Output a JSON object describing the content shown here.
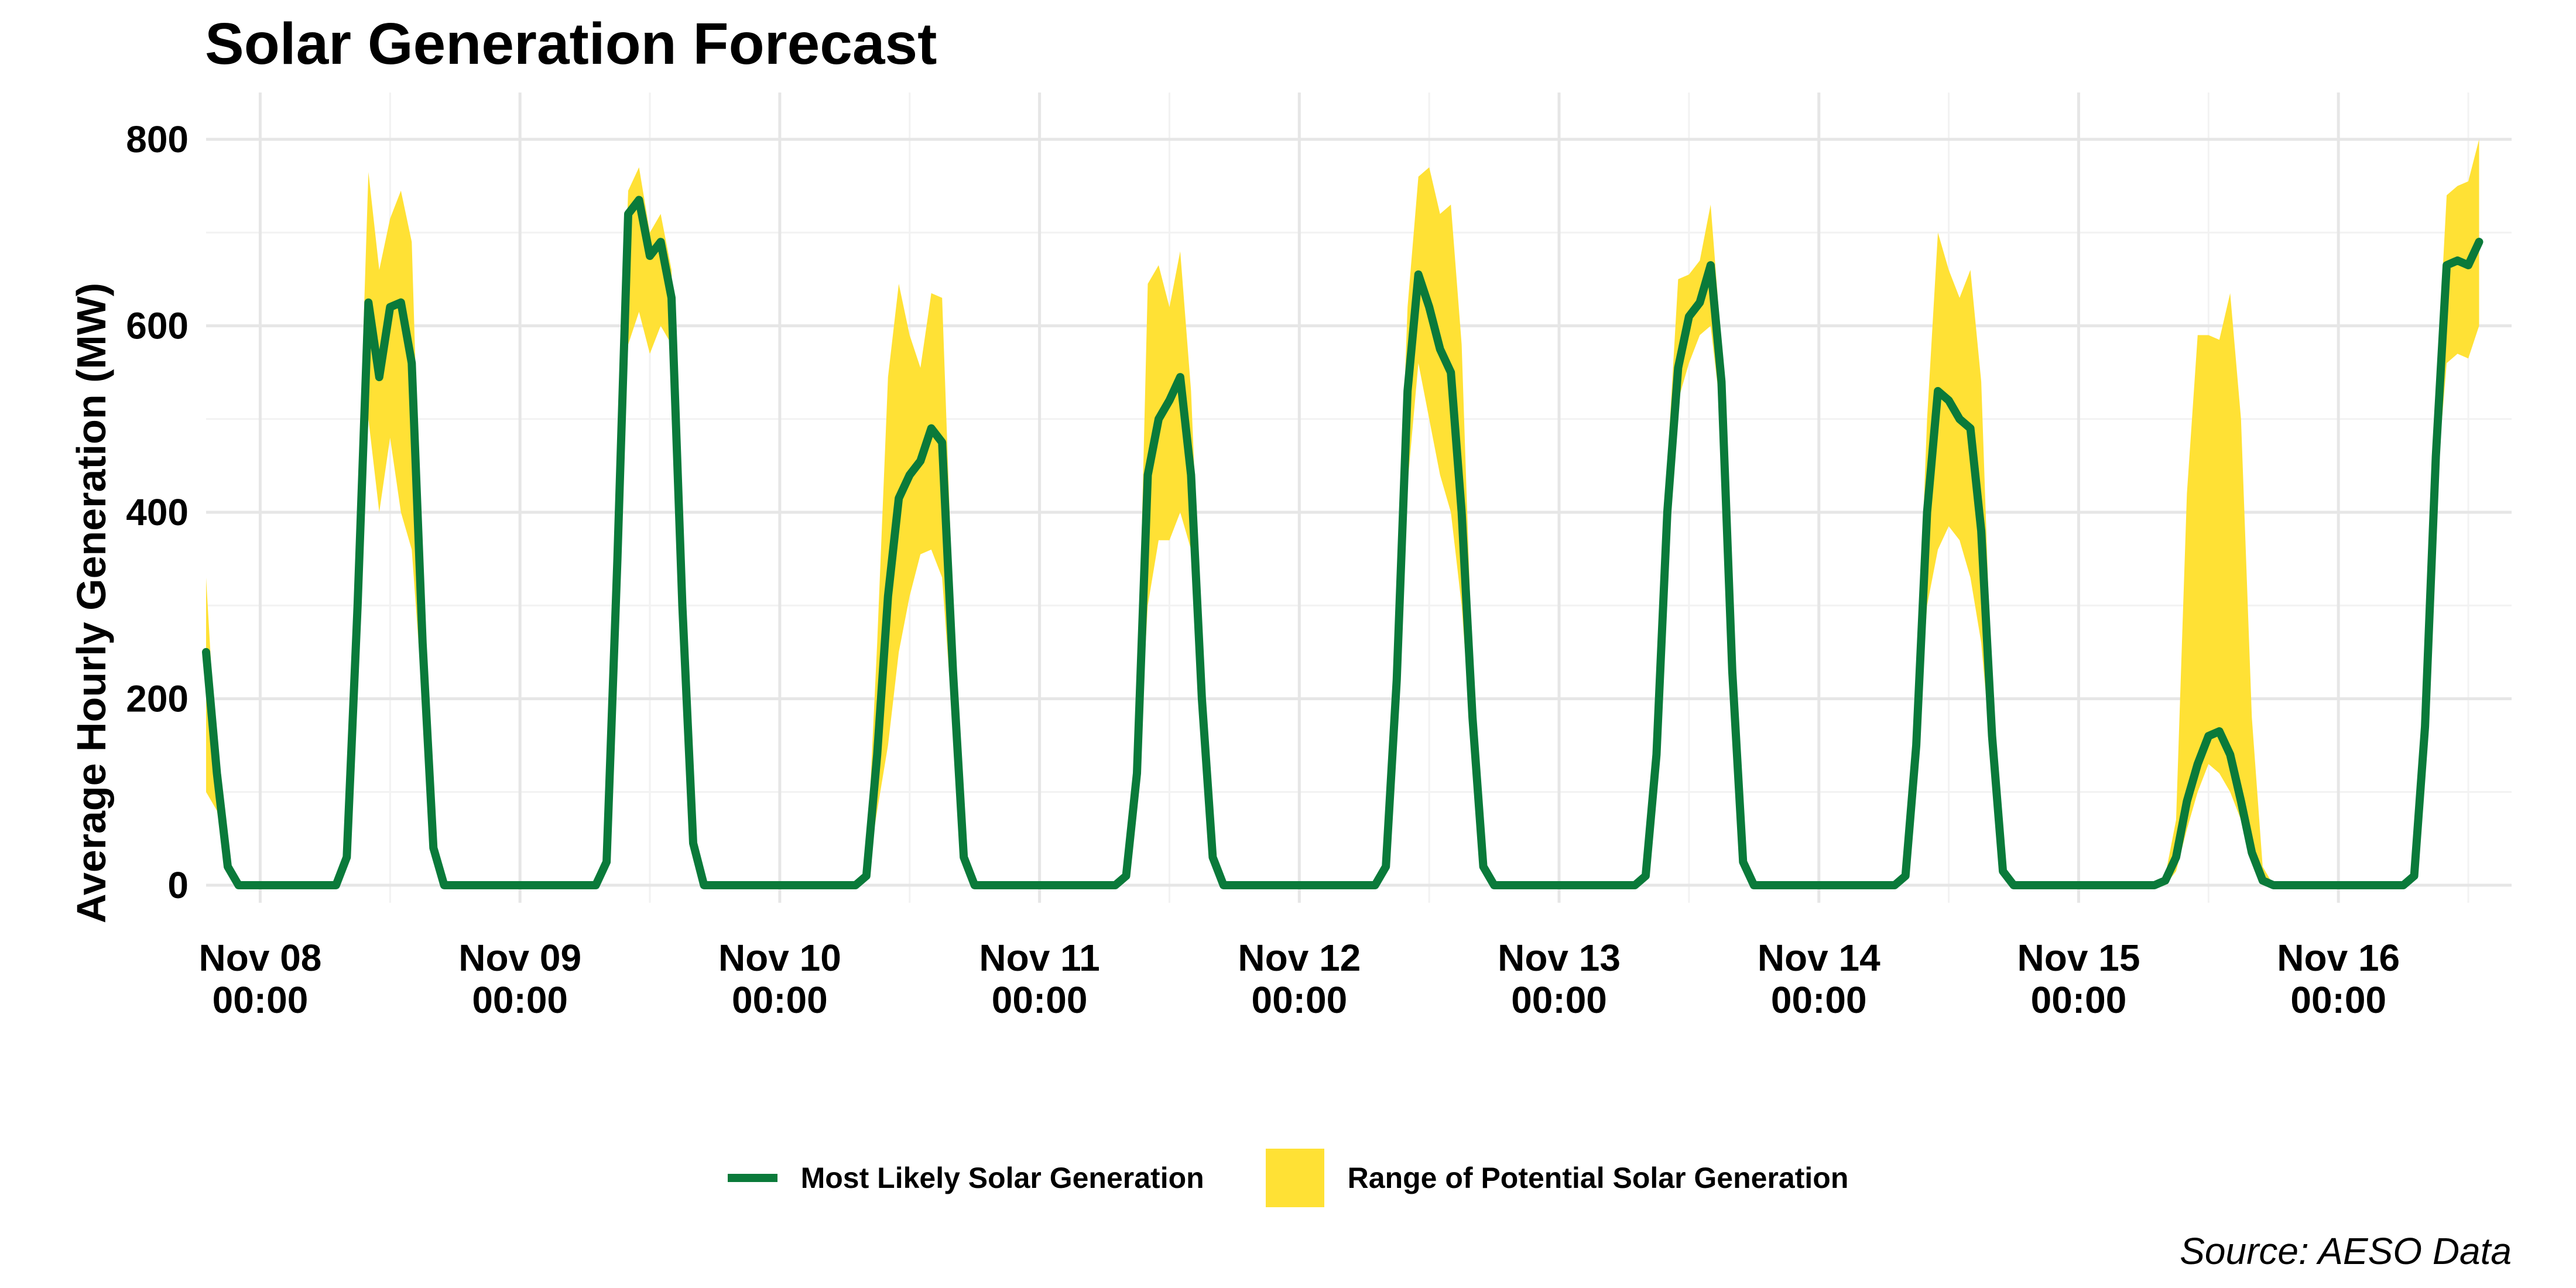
{
  "chart_data": {
    "type": "line",
    "title": "Solar Generation Forecast",
    "ylabel": "Average Hourly Generation (MW)",
    "xlabel": "",
    "ylim": [
      0,
      800
    ],
    "y_ticks": [
      0,
      200,
      400,
      600,
      800
    ],
    "x_domain": [
      "2024-11-07 19:00",
      "2024-11-16 16:00"
    ],
    "x_ticks": [
      {
        "x": "2024-11-08 00:00",
        "line1": "Nov 08",
        "line2": "00:00"
      },
      {
        "x": "2024-11-09 00:00",
        "line1": "Nov 09",
        "line2": "00:00"
      },
      {
        "x": "2024-11-10 00:00",
        "line1": "Nov 10",
        "line2": "00:00"
      },
      {
        "x": "2024-11-11 00:00",
        "line1": "Nov 11",
        "line2": "00:00"
      },
      {
        "x": "2024-11-12 00:00",
        "line1": "Nov 12",
        "line2": "00:00"
      },
      {
        "x": "2024-11-13 00:00",
        "line1": "Nov 13",
        "line2": "00:00"
      },
      {
        "x": "2024-11-14 00:00",
        "line1": "Nov 14",
        "line2": "00:00"
      },
      {
        "x": "2024-11-15 00:00",
        "line1": "Nov 15",
        "line2": "00:00"
      },
      {
        "x": "2024-11-16 00:00",
        "line1": "Nov 16",
        "line2": "00:00"
      }
    ],
    "grid": true,
    "legend_position": "bottom",
    "colors": {
      "line": "#0a7a3a",
      "band": "#ffe135",
      "grid": "#e6e6e6"
    },
    "series": [
      {
        "name": "Most Likely Solar Generation",
        "kind": "line",
        "points": [
          [
            "2024-11-07 19:00",
            250
          ],
          [
            "2024-11-07 20:00",
            120
          ],
          [
            "2024-11-07 21:00",
            20
          ],
          [
            "2024-11-07 22:00",
            0
          ],
          [
            "2024-11-08 07:00",
            0
          ],
          [
            "2024-11-08 08:00",
            30
          ],
          [
            "2024-11-08 09:00",
            300
          ],
          [
            "2024-11-08 10:00",
            625
          ],
          [
            "2024-11-08 11:00",
            545
          ],
          [
            "2024-11-08 12:00",
            620
          ],
          [
            "2024-11-08 13:00",
            625
          ],
          [
            "2024-11-08 14:00",
            560
          ],
          [
            "2024-11-08 15:00",
            260
          ],
          [
            "2024-11-08 16:00",
            40
          ],
          [
            "2024-11-08 17:00",
            0
          ],
          [
            "2024-11-09 07:00",
            0
          ],
          [
            "2024-11-09 08:00",
            25
          ],
          [
            "2024-11-09 09:00",
            350
          ],
          [
            "2024-11-09 10:00",
            720
          ],
          [
            "2024-11-09 11:00",
            735
          ],
          [
            "2024-11-09 12:00",
            675
          ],
          [
            "2024-11-09 13:00",
            690
          ],
          [
            "2024-11-09 14:00",
            630
          ],
          [
            "2024-11-09 15:00",
            300
          ],
          [
            "2024-11-09 16:00",
            45
          ],
          [
            "2024-11-09 17:00",
            0
          ],
          [
            "2024-11-10 07:00",
            0
          ],
          [
            "2024-11-10 08:00",
            10
          ],
          [
            "2024-11-10 09:00",
            140
          ],
          [
            "2024-11-10 10:00",
            310
          ],
          [
            "2024-11-10 11:00",
            415
          ],
          [
            "2024-11-10 12:00",
            440
          ],
          [
            "2024-11-10 13:00",
            455
          ],
          [
            "2024-11-10 14:00",
            490
          ],
          [
            "2024-11-10 15:00",
            475
          ],
          [
            "2024-11-10 16:00",
            230
          ],
          [
            "2024-11-10 17:00",
            30
          ],
          [
            "2024-11-10 18:00",
            0
          ],
          [
            "2024-11-11 07:00",
            0
          ],
          [
            "2024-11-11 08:00",
            10
          ],
          [
            "2024-11-11 09:00",
            120
          ],
          [
            "2024-11-11 10:00",
            440
          ],
          [
            "2024-11-11 11:00",
            500
          ],
          [
            "2024-11-11 12:00",
            520
          ],
          [
            "2024-11-11 13:00",
            545
          ],
          [
            "2024-11-11 14:00",
            440
          ],
          [
            "2024-11-11 15:00",
            200
          ],
          [
            "2024-11-11 16:00",
            30
          ],
          [
            "2024-11-11 17:00",
            0
          ],
          [
            "2024-11-12 07:00",
            0
          ],
          [
            "2024-11-12 08:00",
            20
          ],
          [
            "2024-11-12 09:00",
            220
          ],
          [
            "2024-11-12 10:00",
            530
          ],
          [
            "2024-11-12 11:00",
            655
          ],
          [
            "2024-11-12 12:00",
            620
          ],
          [
            "2024-11-12 13:00",
            575
          ],
          [
            "2024-11-12 14:00",
            550
          ],
          [
            "2024-11-12 15:00",
            400
          ],
          [
            "2024-11-12 16:00",
            180
          ],
          [
            "2024-11-12 17:00",
            20
          ],
          [
            "2024-11-12 18:00",
            0
          ],
          [
            "2024-11-13 07:00",
            0
          ],
          [
            "2024-11-13 08:00",
            10
          ],
          [
            "2024-11-13 09:00",
            140
          ],
          [
            "2024-11-13 10:00",
            400
          ],
          [
            "2024-11-13 11:00",
            555
          ],
          [
            "2024-11-13 12:00",
            610
          ],
          [
            "2024-11-13 13:00",
            625
          ],
          [
            "2024-11-13 14:00",
            665
          ],
          [
            "2024-11-13 15:00",
            540
          ],
          [
            "2024-11-13 16:00",
            230
          ],
          [
            "2024-11-13 17:00",
            25
          ],
          [
            "2024-11-13 18:00",
            0
          ],
          [
            "2024-11-14 07:00",
            0
          ],
          [
            "2024-11-14 08:00",
            10
          ],
          [
            "2024-11-14 09:00",
            150
          ],
          [
            "2024-11-14 10:00",
            400
          ],
          [
            "2024-11-14 11:00",
            530
          ],
          [
            "2024-11-14 12:00",
            520
          ],
          [
            "2024-11-14 13:00",
            500
          ],
          [
            "2024-11-14 14:00",
            490
          ],
          [
            "2024-11-14 15:00",
            380
          ],
          [
            "2024-11-14 16:00",
            160
          ],
          [
            "2024-11-14 17:00",
            15
          ],
          [
            "2024-11-14 18:00",
            0
          ],
          [
            "2024-11-15 07:00",
            0
          ],
          [
            "2024-11-15 08:00",
            5
          ],
          [
            "2024-11-15 09:00",
            30
          ],
          [
            "2024-11-15 10:00",
            90
          ],
          [
            "2024-11-15 11:00",
            130
          ],
          [
            "2024-11-15 12:00",
            160
          ],
          [
            "2024-11-15 13:00",
            165
          ],
          [
            "2024-11-15 14:00",
            140
          ],
          [
            "2024-11-15 15:00",
            90
          ],
          [
            "2024-11-15 16:00",
            35
          ],
          [
            "2024-11-15 17:00",
            5
          ],
          [
            "2024-11-15 18:00",
            0
          ],
          [
            "2024-11-16 06:00",
            0
          ],
          [
            "2024-11-16 07:00",
            10
          ],
          [
            "2024-11-16 08:00",
            170
          ],
          [
            "2024-11-16 09:00",
            460
          ],
          [
            "2024-11-16 10:00",
            665
          ],
          [
            "2024-11-16 11:00",
            670
          ],
          [
            "2024-11-16 12:00",
            665
          ],
          [
            "2024-11-16 13:00",
            690
          ]
        ]
      },
      {
        "name": "Range of Potential Solar Generation",
        "kind": "band",
        "points": [
          [
            "2024-11-07 19:00",
            100,
            330
          ],
          [
            "2024-11-07 20:00",
            80,
            130
          ],
          [
            "2024-11-07 21:00",
            15,
            25
          ],
          [
            "2024-11-07 22:00",
            0,
            0
          ],
          [
            "2024-11-08 07:00",
            0,
            0
          ],
          [
            "2024-11-08 08:00",
            20,
            40
          ],
          [
            "2024-11-08 09:00",
            250,
            400
          ],
          [
            "2024-11-08 10:00",
            500,
            765
          ],
          [
            "2024-11-08 11:00",
            400,
            660
          ],
          [
            "2024-11-08 12:00",
            480,
            715
          ],
          [
            "2024-11-08 13:00",
            400,
            745
          ],
          [
            "2024-11-08 14:00",
            360,
            690
          ],
          [
            "2024-11-08 15:00",
            200,
            300
          ],
          [
            "2024-11-08 16:00",
            35,
            50
          ],
          [
            "2024-11-08 17:00",
            0,
            0
          ],
          [
            "2024-11-09 07:00",
            0,
            0
          ],
          [
            "2024-11-09 08:00",
            20,
            30
          ],
          [
            "2024-11-09 09:00",
            300,
            420
          ],
          [
            "2024-11-09 10:00",
            580,
            745
          ],
          [
            "2024-11-09 11:00",
            615,
            770
          ],
          [
            "2024-11-09 12:00",
            570,
            700
          ],
          [
            "2024-11-09 13:00",
            600,
            720
          ],
          [
            "2024-11-09 14:00",
            580,
            660
          ],
          [
            "2024-11-09 15:00",
            260,
            330
          ],
          [
            "2024-11-09 16:00",
            40,
            50
          ],
          [
            "2024-11-09 17:00",
            0,
            0
          ],
          [
            "2024-11-10 07:00",
            0,
            0
          ],
          [
            "2024-11-10 08:00",
            5,
            15
          ],
          [
            "2024-11-10 09:00",
            80,
            260
          ],
          [
            "2024-11-10 10:00",
            150,
            545
          ],
          [
            "2024-11-10 11:00",
            250,
            645
          ],
          [
            "2024-11-10 12:00",
            310,
            590
          ],
          [
            "2024-11-10 13:00",
            355,
            555
          ],
          [
            "2024-11-10 14:00",
            360,
            635
          ],
          [
            "2024-11-10 15:00",
            330,
            630
          ],
          [
            "2024-11-10 16:00",
            170,
            300
          ],
          [
            "2024-11-10 17:00",
            20,
            40
          ],
          [
            "2024-11-10 18:00",
            0,
            0
          ],
          [
            "2024-11-11 07:00",
            0,
            0
          ],
          [
            "2024-11-11 08:00",
            5,
            15
          ],
          [
            "2024-11-11 09:00",
            90,
            170
          ],
          [
            "2024-11-11 10:00",
            300,
            645
          ],
          [
            "2024-11-11 11:00",
            370,
            665
          ],
          [
            "2024-11-11 12:00",
            370,
            620
          ],
          [
            "2024-11-11 13:00",
            400,
            680
          ],
          [
            "2024-11-11 14:00",
            360,
            530
          ],
          [
            "2024-11-11 15:00",
            150,
            250
          ],
          [
            "2024-11-11 16:00",
            20,
            40
          ],
          [
            "2024-11-11 17:00",
            0,
            0
          ],
          [
            "2024-11-12 07:00",
            0,
            0
          ],
          [
            "2024-11-12 08:00",
            15,
            25
          ],
          [
            "2024-11-12 09:00",
            180,
            300
          ],
          [
            "2024-11-12 10:00",
            430,
            620
          ],
          [
            "2024-11-12 11:00",
            560,
            760
          ],
          [
            "2024-11-12 12:00",
            500,
            770
          ],
          [
            "2024-11-12 13:00",
            440,
            720
          ],
          [
            "2024-11-12 14:00",
            400,
            730
          ],
          [
            "2024-11-12 15:00",
            300,
            580
          ],
          [
            "2024-11-12 16:00",
            140,
            230
          ],
          [
            "2024-11-12 17:00",
            15,
            25
          ],
          [
            "2024-11-12 18:00",
            0,
            0
          ],
          [
            "2024-11-13 07:00",
            0,
            0
          ],
          [
            "2024-11-13 08:00",
            5,
            15
          ],
          [
            "2024-11-13 09:00",
            110,
            170
          ],
          [
            "2024-11-13 10:00",
            350,
            450
          ],
          [
            "2024-11-13 11:00",
            520,
            650
          ],
          [
            "2024-11-13 12:00",
            560,
            655
          ],
          [
            "2024-11-13 13:00",
            590,
            670
          ],
          [
            "2024-11-13 14:00",
            600,
            730
          ],
          [
            "2024-11-13 15:00",
            500,
            580
          ],
          [
            "2024-11-13 16:00",
            200,
            260
          ],
          [
            "2024-11-13 17:00",
            20,
            30
          ],
          [
            "2024-11-13 18:00",
            0,
            0
          ],
          [
            "2024-11-14 07:00",
            0,
            0
          ],
          [
            "2024-11-14 08:00",
            5,
            15
          ],
          [
            "2024-11-14 09:00",
            120,
            200
          ],
          [
            "2024-11-14 10:00",
            300,
            500
          ],
          [
            "2024-11-14 11:00",
            360,
            700
          ],
          [
            "2024-11-14 12:00",
            385,
            660
          ],
          [
            "2024-11-14 13:00",
            370,
            630
          ],
          [
            "2024-11-14 14:00",
            330,
            660
          ],
          [
            "2024-11-14 15:00",
            260,
            540
          ],
          [
            "2024-11-14 16:00",
            130,
            200
          ],
          [
            "2024-11-14 17:00",
            10,
            20
          ],
          [
            "2024-11-14 18:00",
            0,
            0
          ],
          [
            "2024-11-15 07:00",
            0,
            0
          ],
          [
            "2024-11-15 08:00",
            0,
            10
          ],
          [
            "2024-11-15 09:00",
            15,
            70
          ],
          [
            "2024-11-15 10:00",
            60,
            420
          ],
          [
            "2024-11-15 11:00",
            100,
            590
          ],
          [
            "2024-11-15 12:00",
            130,
            590
          ],
          [
            "2024-11-15 13:00",
            120,
            585
          ],
          [
            "2024-11-15 14:00",
            100,
            635
          ],
          [
            "2024-11-15 15:00",
            70,
            500
          ],
          [
            "2024-11-15 16:00",
            25,
            180
          ],
          [
            "2024-11-15 17:00",
            0,
            20
          ],
          [
            "2024-11-15 18:00",
            0,
            0
          ],
          [
            "2024-11-16 06:00",
            0,
            0
          ],
          [
            "2024-11-16 07:00",
            5,
            15
          ],
          [
            "2024-11-16 08:00",
            130,
            220
          ],
          [
            "2024-11-16 09:00",
            420,
            520
          ],
          [
            "2024-11-16 10:00",
            560,
            740
          ],
          [
            "2024-11-16 11:00",
            570,
            750
          ],
          [
            "2024-11-16 12:00",
            565,
            755
          ],
          [
            "2024-11-16 13:00",
            600,
            800
          ]
        ]
      }
    ],
    "source": "Source: AESO Data"
  }
}
